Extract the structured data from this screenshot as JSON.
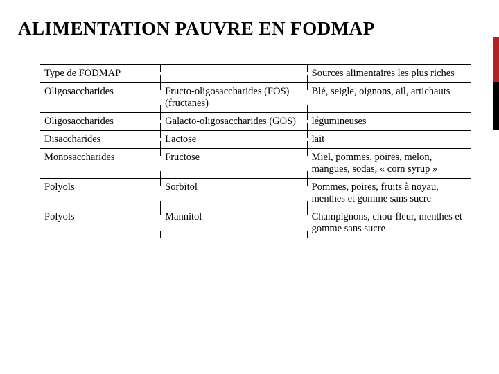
{
  "title": "ALIMENTATION PAUVRE EN FODMAP",
  "accent_colors": {
    "red": "#b22222",
    "black": "#000000"
  },
  "table": {
    "columns": [
      "Type de FODMAP",
      "",
      "Sources alimentaires les plus riches"
    ],
    "rows": [
      [
        "Type de FODMAP",
        "",
        "Sources alimentaires les plus riches"
      ],
      [
        "Oligosaccharides",
        "Fructo-oligosaccharides (FOS) (fructanes)",
        "Blé, seigle, oignons, ail, artichauts"
      ],
      [
        "Oligosaccharides",
        "Galacto-oligosaccharides (GOS)",
        "légumineuses"
      ],
      [
        "Disaccharides",
        "Lactose",
        "lait"
      ],
      [
        "Monosaccharides",
        "Fructose",
        "Miel, pommes, poires, melon, mangues, sodas, « corn syrup »"
      ],
      [
        "Polyols",
        "Sorbitol",
        "Pommes, poires, fruits à noyau, menthes et gomme sans sucre"
      ],
      [
        "Polyols",
        "Mannitol",
        "Champignons, chou-fleur, menthes et gomme sans sucre"
      ]
    ]
  }
}
